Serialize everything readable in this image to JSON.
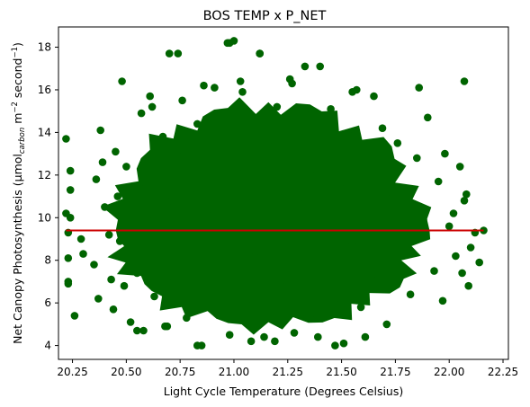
{
  "chart_data": {
    "type": "scatter",
    "title": "BOS TEMP x P_NET",
    "xlabel": "Light Cycle Temperature (Degrees Celsius)",
    "ylabel_parts": {
      "main": "Net Canopy Photosynthesis (µmol",
      "sub": "carbon",
      "mid": " m",
      "sup1": "−2",
      "mid2": " second",
      "sup2": "−1",
      "end": ")"
    },
    "xlim": [
      20.185,
      22.275
    ],
    "ylim": [
      3.35,
      18.95
    ],
    "x_ticks": [
      "20.25",
      "20.50",
      "20.75",
      "21.00",
      "21.25",
      "21.50",
      "21.75",
      "22.00",
      "22.25"
    ],
    "y_ticks": [
      "4",
      "6",
      "8",
      "10",
      "12",
      "14",
      "16",
      "18"
    ],
    "grid": false,
    "point_color": "#006400",
    "trend_color": "#cc0000",
    "trend_line": {
      "x": [
        20.22,
        22.16
      ],
      "y": [
        9.4,
        9.4
      ]
    },
    "points": {
      "x": [
        20.22,
        20.22,
        20.23,
        20.23,
        20.24,
        20.24,
        20.23,
        20.26,
        20.24,
        20.23,
        20.29,
        20.3,
        20.35,
        20.36,
        20.38,
        20.37,
        20.39,
        20.4,
        20.42,
        20.43,
        20.44,
        20.45,
        20.46,
        20.47,
        20.48,
        20.49,
        20.5,
        20.52,
        20.53,
        20.55,
        20.57,
        20.58,
        20.59,
        20.6,
        20.62,
        20.63,
        20.65,
        20.67,
        20.68,
        20.7,
        20.71,
        20.72,
        20.74,
        20.74,
        20.76,
        20.78,
        20.8,
        20.81,
        20.83,
        20.85,
        20.86,
        20.88,
        20.9,
        20.92,
        20.95,
        20.97,
        20.98,
        21.0,
        21.02,
        21.04,
        21.06,
        21.08,
        21.1,
        21.12,
        21.14,
        21.16,
        21.18,
        21.2,
        21.22,
        21.24,
        21.26,
        21.28,
        21.3,
        21.32,
        21.34,
        21.36,
        21.38,
        21.4,
        21.42,
        21.45,
        21.47,
        21.49,
        21.51,
        21.53,
        21.55,
        21.57,
        21.59,
        21.61,
        21.63,
        21.65,
        21.67,
        21.69,
        21.71,
        21.73,
        21.76,
        21.79,
        21.82,
        21.85,
        21.88,
        21.9,
        21.93,
        21.95,
        21.97,
        21.98,
        22.0,
        22.02,
        22.03,
        22.05,
        22.06,
        22.07,
        22.08,
        22.09,
        22.1,
        22.12,
        22.14,
        22.16,
        21.0,
        20.98,
        21.12,
        21.33,
        20.74,
        21.27,
        20.91,
        20.61,
        21.55,
        21.03,
        21.86,
        22.07,
        20.83,
        20.55,
        21.47,
        21.61,
        21.19,
        21.39,
        20.69,
        21.08
      ],
      "y": [
        13.7,
        10.2,
        9.3,
        8.1,
        12.2,
        11.3,
        7.0,
        5.4,
        10.0,
        6.9,
        9.0,
        8.3,
        7.8,
        11.8,
        14.1,
        6.2,
        12.6,
        10.5,
        9.2,
        7.1,
        5.7,
        13.1,
        11.0,
        8.9,
        16.4,
        6.8,
        12.4,
        5.1,
        9.8,
        7.4,
        14.9,
        4.7,
        11.6,
        10.1,
        15.2,
        6.3,
        8.6,
        13.8,
        4.9,
        17.7,
        10.8,
        7.2,
        12.9,
        9.5,
        15.5,
        5.3,
        11.3,
        8.0,
        14.4,
        4.0,
        16.2,
        6.6,
        10.4,
        13.3,
        7.7,
        18.2,
        4.5,
        9.7,
        12.1,
        15.9,
        5.9,
        11.0,
        8.4,
        17.7,
        4.4,
        13.6,
        9.1,
        15.2,
        6.8,
        11.9,
        16.5,
        4.6,
        10.7,
        7.9,
        14.8,
        12.3,
        5.5,
        17.1,
        9.4,
        15.1,
        6.2,
        11.5,
        4.1,
        13.9,
        8.7,
        16.0,
        5.8,
        12.6,
        10.3,
        15.7,
        7.3,
        14.2,
        5.0,
        11.2,
        13.5,
        8.6,
        6.4,
        12.8,
        9.9,
        14.7,
        7.5,
        11.7,
        6.1,
        13.0,
        9.6,
        10.2,
        8.2,
        12.4,
        7.4,
        10.8,
        11.1,
        6.8,
        8.6,
        9.3,
        7.9,
        9.4,
        18.3,
        18.2,
        17.7,
        17.1,
        17.7,
        16.3,
        16.1,
        15.7,
        15.9,
        16.4,
        16.1,
        16.4,
        4.0,
        4.7,
        4.0,
        4.4,
        4.2,
        4.4,
        4.9,
        4.2
      ]
    }
  }
}
